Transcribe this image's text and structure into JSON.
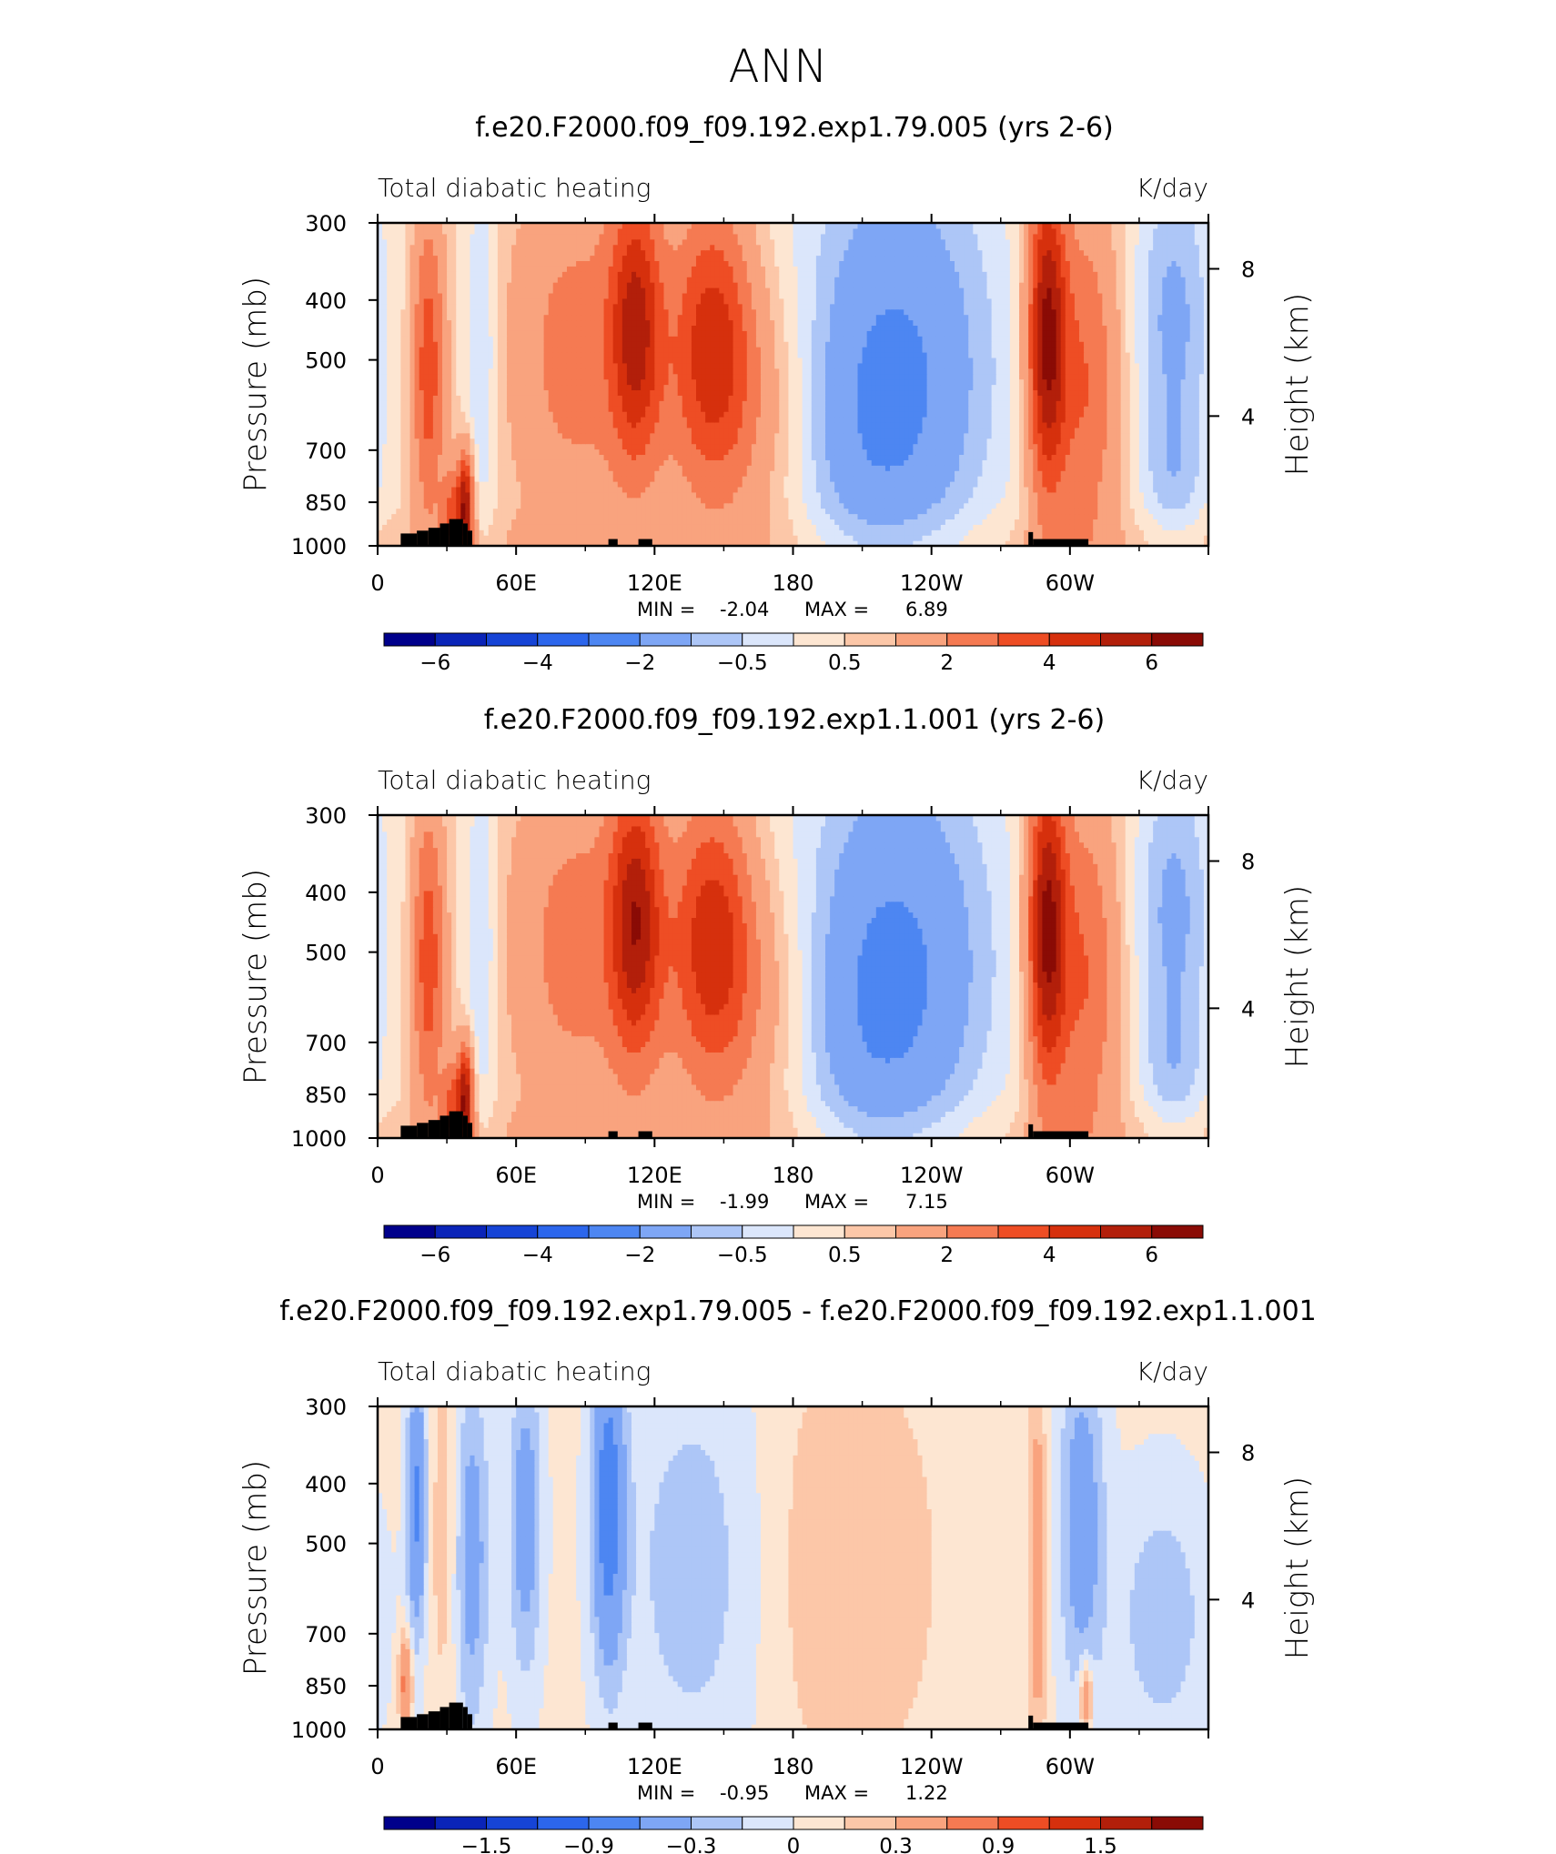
{
  "figure": {
    "title": "ANN"
  },
  "chart_data": [
    {
      "type": "heatmap",
      "title": "f.e20.F2000.f09_f09.192.exp1.79.005 (yrs 2-6)",
      "left_label": "Total diabatic heating",
      "right_label": "K/day",
      "ylabel": "Pressure (mb)",
      "ylabel_right": "Height (km)",
      "xlabel": "",
      "x_ticks": [
        "0",
        "60E",
        "120E",
        "180",
        "120W",
        "60W"
      ],
      "y_ticks": [
        "300",
        "400",
        "500",
        "700",
        "850",
        "1000"
      ],
      "y_ticks_right": [
        "8",
        "4"
      ],
      "ylim": [
        1000,
        300
      ],
      "xlim": [
        0,
        360
      ],
      "stats_min_label": "MIN =",
      "stats_min": "-2.04",
      "stats_max_label": "MAX =",
      "stats_max": "6.89",
      "colorbar_levels": [
        -7,
        -6,
        -5,
        -4,
        -3,
        -2,
        -1,
        -0.5,
        0,
        0.5,
        1,
        2,
        3,
        4,
        5,
        6,
        7
      ],
      "colorbar_labels": [
        "−6",
        "−4",
        "−2",
        "−0.5",
        "0.5",
        "2",
        "4",
        "6"
      ]
    },
    {
      "type": "heatmap",
      "title": "f.e20.F2000.f09_f09.192.exp1.1.001 (yrs 2-6)",
      "left_label": "Total diabatic heating",
      "right_label": "K/day",
      "ylabel": "Pressure (mb)",
      "ylabel_right": "Height (km)",
      "xlabel": "",
      "x_ticks": [
        "0",
        "60E",
        "120E",
        "180",
        "120W",
        "60W"
      ],
      "y_ticks": [
        "300",
        "400",
        "500",
        "700",
        "850",
        "1000"
      ],
      "y_ticks_right": [
        "8",
        "4"
      ],
      "ylim": [
        1000,
        300
      ],
      "xlim": [
        0,
        360
      ],
      "stats_min_label": "MIN =",
      "stats_min": "-1.99",
      "stats_max_label": "MAX =",
      "stats_max": "7.15",
      "colorbar_levels": [
        -7,
        -6,
        -5,
        -4,
        -3,
        -2,
        -1,
        -0.5,
        0,
        0.5,
        1,
        2,
        3,
        4,
        5,
        6,
        7
      ],
      "colorbar_labels": [
        "−6",
        "−4",
        "−2",
        "−0.5",
        "0.5",
        "2",
        "4",
        "6"
      ]
    },
    {
      "type": "heatmap",
      "title": "f.e20.F2000.f09_f09.192.exp1.79.005 - f.e20.F2000.f09_f09.192.exp1.1.001",
      "left_label": "Total diabatic heating",
      "right_label": "K/day",
      "ylabel": "Pressure (mb)",
      "ylabel_right": "Height (km)",
      "xlabel": "",
      "x_ticks": [
        "0",
        "60E",
        "120E",
        "180",
        "120W",
        "60W"
      ],
      "y_ticks": [
        "300",
        "400",
        "500",
        "700",
        "850",
        "1000"
      ],
      "y_ticks_right": [
        "8",
        "4"
      ],
      "ylim": [
        1000,
        300
      ],
      "xlim": [
        0,
        360
      ],
      "stats_min_label": "MIN =",
      "stats_min": "-0.95",
      "stats_max_label": "MAX =",
      "stats_max": "1.22",
      "colorbar_levels": [
        -2.1,
        -1.8,
        -1.5,
        -1.2,
        -0.9,
        -0.6,
        -0.3,
        -0.15,
        0,
        0.15,
        0.3,
        0.6,
        0.9,
        1.2,
        1.5,
        1.8,
        2.1
      ],
      "colorbar_labels": [
        "−1.5",
        "−0.9",
        "−0.3",
        "0",
        "0.3",
        "0.9",
        "1.5"
      ]
    }
  ],
  "palette": {
    "colorbar_colors": [
      "#00008b",
      "#0a24b8",
      "#1644d6",
      "#2c66ec",
      "#4d86f2",
      "#7ea6f5",
      "#adc6f7",
      "#dbe6fb",
      "#fde6d2",
      "#fcc7a8",
      "#f9a37e",
      "#f57a52",
      "#ee4d24",
      "#d6300d",
      "#b21f0a",
      "#8a0b05"
    ],
    "diff_colors": [
      "#00008b",
      "#0a24b8",
      "#1644d6",
      "#2c66ec",
      "#4d86f2",
      "#7ea6f5",
      "#adc6f7",
      "#dbe6fb",
      "#fde6d2",
      "#fcc7a8",
      "#f9a37e",
      "#f57a52",
      "#ee4d24",
      "#d6300d",
      "#b21f0a",
      "#8a0b05"
    ],
    "terrain": "#000000"
  }
}
